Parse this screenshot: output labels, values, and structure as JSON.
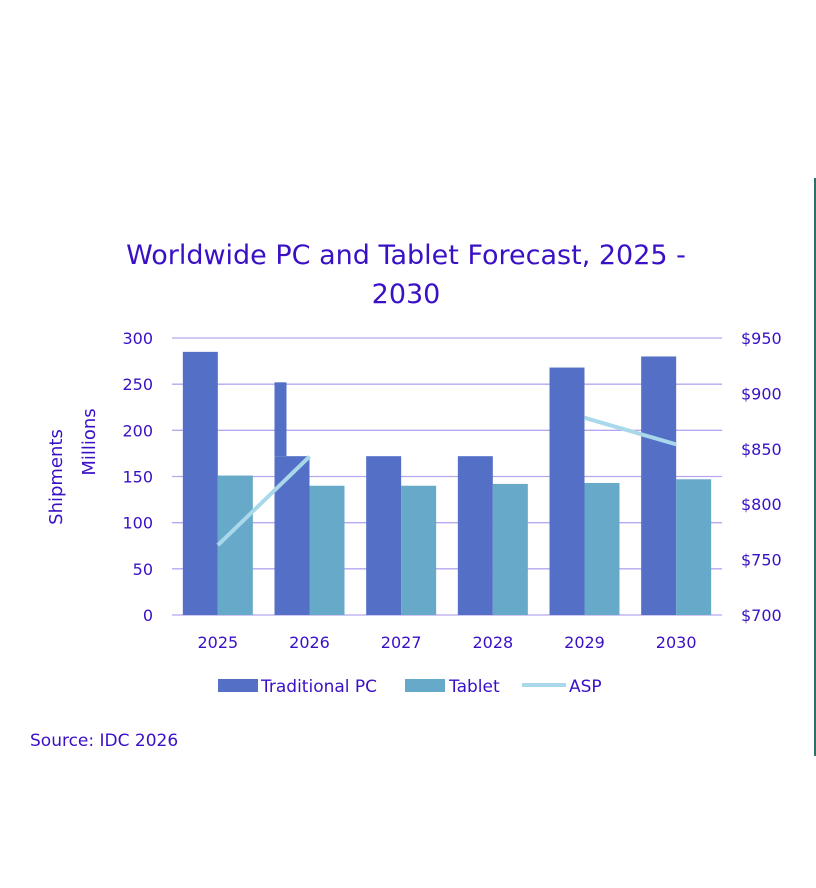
{
  "chart_data": {
    "type": "bar",
    "title_lines": [
      "Worldwide PC and Tablet Forecast, 2025 -",
      "2030"
    ],
    "categories": [
      "2025",
      "2026",
      "2027",
      "2028",
      "2029",
      "2030"
    ],
    "series": [
      {
        "name": "Traditional PC",
        "type": "bar",
        "axis": "left",
        "color": "#5470c6",
        "values": [
          285,
          172,
          172,
          172,
          268,
          280
        ]
      },
      {
        "name": "Tablet",
        "type": "bar",
        "axis": "left",
        "color": "#66a9c9",
        "values": [
          151,
          140,
          140,
          142,
          143,
          147
        ]
      },
      {
        "name": "ASP",
        "type": "line",
        "axis": "right",
        "color": "#a8d8ea",
        "values": [
          763,
          843,
          null,
          null,
          878,
          854
        ]
      }
    ],
    "y_left": {
      "label_lines": [
        "Shipments",
        "Millions"
      ],
      "lim": [
        0,
        300
      ],
      "ticks": [
        0,
        50,
        100,
        150,
        200,
        250,
        300
      ]
    },
    "y_right": {
      "lim": [
        700,
        950
      ],
      "ticks": [
        "$700",
        "$750",
        "$800",
        "$850",
        "$900",
        "$950"
      ],
      "tick_values": [
        700,
        750,
        800,
        850,
        900,
        950
      ]
    },
    "stray_mark": {
      "category": "2026",
      "value": 252
    },
    "legend": {
      "position": "bottom",
      "entries": [
        "Traditional PC",
        "Tablet",
        "ASP"
      ]
    },
    "grid": true,
    "source": "Source: IDC 2026"
  },
  "colors": {
    "text": "#3a10c6",
    "grid": "#b7a6f0",
    "right_edge_line": "#2f6f6a"
  }
}
